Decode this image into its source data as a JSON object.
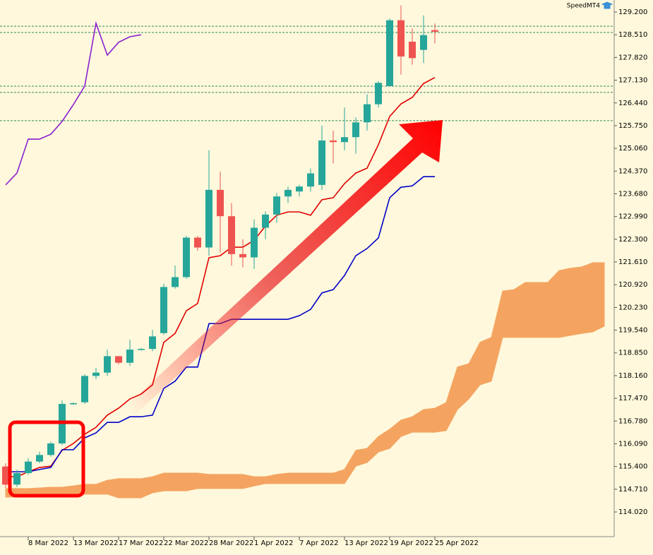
{
  "chart_data": {
    "type": "candlestick",
    "watermark": "SpeedMT4",
    "categories": [
      null,
      null,
      "8 Mar 2022",
      null,
      null,
      null,
      "13 Mar 2022",
      null,
      null,
      null,
      "17 Mar 2022",
      null,
      null,
      null,
      "22 Mar 2022",
      null,
      null,
      null,
      "28 Mar 2022",
      null,
      null,
      null,
      "1 Apr 2022",
      null,
      null,
      null,
      "7 Apr 2022",
      null,
      null,
      null,
      "13 Apr 2022",
      null,
      null,
      null,
      "19 Apr 2022",
      null,
      null,
      null,
      "25 Apr 2022",
      null,
      null,
      null,
      null,
      null,
      null,
      null,
      null,
      null,
      null,
      null,
      null,
      null,
      null,
      null
    ],
    "open": [
      115.4,
      114.85,
      115.2,
      115.55,
      115.75,
      116.1,
      117.3,
      117.35,
      118.15,
      118.25,
      118.75,
      118.55,
      118.95,
      118.97,
      119.45,
      120.85,
      121.15,
      122.35,
      122.05,
      123.8,
      123.0,
      121.85,
      121.75,
      122.65,
      123.05,
      123.6,
      123.75,
      123.9,
      123.95,
      125.3,
      125.25,
      125.4,
      125.85,
      126.4,
      126.95,
      128.95,
      128.3,
      128.05,
      128.65,
      null,
      null,
      null,
      null,
      null,
      null,
      null,
      null,
      null,
      null,
      null,
      null,
      null,
      null,
      null
    ],
    "high": [
      115.5,
      115.3,
      115.65,
      115.85,
      116.15,
      117.4,
      117.35,
      118.2,
      118.4,
      118.95,
      118.75,
      119.25,
      119.0,
      119.55,
      120.95,
      121.5,
      122.4,
      122.4,
      125.0,
      124.35,
      123.4,
      122.3,
      122.9,
      123.15,
      123.7,
      123.9,
      123.95,
      124.45,
      125.75,
      125.6,
      126.3,
      126.0,
      126.7,
      127.1,
      129.0,
      129.4,
      128.7,
      129.1,
      128.85,
      null,
      null,
      null,
      null,
      null,
      null,
      null,
      null,
      null,
      null,
      null,
      null,
      null,
      null,
      null
    ],
    "low": [
      114.75,
      114.78,
      115.15,
      115.5,
      115.7,
      116.05,
      117.28,
      117.3,
      118.05,
      118.15,
      118.5,
      118.45,
      118.92,
      118.9,
      119.4,
      120.8,
      121.1,
      121.95,
      121.8,
      121.9,
      121.5,
      121.45,
      121.4,
      122.3,
      122.8,
      123.4,
      123.6,
      123.75,
      123.8,
      124.6,
      125.0,
      124.9,
      125.6,
      126.3,
      126.95,
      127.3,
      127.6,
      127.65,
      128.25,
      null,
      null,
      null,
      null,
      null,
      null,
      null,
      null,
      null,
      null,
      null,
      null,
      null,
      null,
      null
    ],
    "close": [
      114.85,
      115.2,
      115.55,
      115.75,
      116.1,
      117.3,
      117.32,
      118.15,
      118.25,
      118.75,
      118.55,
      118.95,
      118.97,
      119.35,
      120.85,
      121.15,
      122.35,
      122.05,
      123.8,
      123.0,
      121.85,
      121.75,
      122.65,
      123.05,
      123.6,
      123.8,
      123.9,
      124.3,
      125.3,
      125.25,
      125.4,
      125.85,
      126.4,
      127.05,
      128.95,
      127.85,
      127.8,
      128.5,
      128.6,
      null,
      null,
      null,
      null,
      null,
      null,
      null,
      null,
      null,
      null,
      null,
      null,
      null,
      null,
      null
    ],
    "up_color": "#26a69a",
    "down_color": "#ef5350",
    "series": [
      {
        "color": "#e00000",
        "values": [
          115.09,
          115.09,
          115.24,
          115.37,
          115.41,
          115.89,
          116.1,
          116.38,
          116.59,
          116.96,
          117.17,
          117.45,
          117.6,
          117.88,
          119.17,
          119.44,
          120.13,
          120.35,
          121.74,
          121.8,
          122.06,
          122.06,
          122.27,
          122.7,
          123.03,
          123.13,
          123.13,
          123.03,
          123.5,
          123.56,
          123.99,
          124.31,
          124.46,
          125.17,
          126.03,
          126.41,
          126.61,
          127.03,
          127.21,
          null,
          null,
          null,
          null,
          null,
          null,
          null,
          null,
          null,
          null,
          null,
          null,
          null,
          null,
          null
        ]
      },
      {
        "color": "#0000c8",
        "values": [
          115.24,
          115.24,
          115.24,
          115.31,
          115.37,
          115.91,
          115.91,
          116.27,
          116.42,
          116.74,
          116.74,
          116.91,
          116.91,
          116.96,
          117.77,
          117.99,
          118.42,
          118.42,
          119.74,
          119.74,
          119.87,
          119.87,
          119.87,
          119.87,
          119.87,
          119.87,
          119.98,
          120.17,
          120.67,
          120.77,
          121.2,
          121.8,
          122.02,
          122.34,
          123.56,
          123.88,
          123.92,
          124.2,
          124.2,
          null,
          null,
          null,
          null,
          null,
          null,
          null,
          null,
          null,
          null,
          null,
          null,
          null,
          null,
          null
        ]
      },
      {
        "color": "#8a1fd0",
        "values": [
          123.95,
          124.31,
          125.34,
          125.34,
          125.49,
          125.88,
          126.39,
          126.95,
          128.86,
          127.89,
          128.28,
          128.45,
          128.51,
          null,
          null,
          null,
          null,
          null,
          null,
          null,
          null,
          null,
          null,
          null,
          null,
          null,
          null,
          null,
          null,
          null,
          null,
          null,
          null,
          null,
          null,
          null,
          null,
          null,
          null,
          null,
          null,
          null,
          null,
          null,
          null,
          null,
          null,
          null,
          null,
          null,
          null,
          null,
          null,
          null
        ]
      }
    ],
    "cloud": {
      "color": "#f4a460",
      "upper": [
        114.73,
        114.73,
        114.73,
        114.75,
        114.77,
        114.77,
        114.81,
        114.86,
        114.86,
        114.98,
        115.03,
        115.03,
        115.03,
        115.09,
        115.2,
        115.2,
        115.2,
        115.2,
        115.16,
        115.16,
        115.16,
        115.16,
        115.09,
        115.09,
        115.16,
        115.2,
        115.2,
        115.2,
        115.2,
        115.2,
        115.31,
        115.89,
        115.95,
        116.31,
        116.53,
        116.81,
        116.91,
        117.13,
        117.17,
        117.34,
        118.42,
        118.52,
        119.17,
        119.32,
        120.73,
        120.77,
        120.99,
        120.99,
        120.99,
        121.35,
        121.42,
        121.46,
        121.59,
        121.59
      ],
      "lower": [
        114.47,
        114.47,
        114.47,
        114.47,
        114.47,
        114.49,
        114.49,
        114.56,
        114.56,
        114.56,
        114.45,
        114.45,
        114.45,
        114.6,
        114.66,
        114.66,
        114.66,
        114.73,
        114.73,
        114.73,
        114.73,
        114.73,
        114.81,
        114.88,
        114.88,
        114.88,
        114.88,
        114.88,
        114.88,
        114.88,
        114.88,
        115.41,
        115.52,
        115.84,
        115.95,
        116.31,
        116.44,
        116.44,
        116.44,
        116.49,
        117.13,
        117.45,
        117.88,
        117.99,
        119.32,
        119.32,
        119.32,
        119.32,
        119.32,
        119.32,
        119.38,
        119.44,
        119.49,
        119.66
      ]
    },
    "hlines": {
      "color": "#2e8b57",
      "values": [
        128.77,
        128.58,
        126.95,
        126.76,
        125.9
      ]
    },
    "ylim": [
      113.27,
      129.565
    ],
    "yticks": [
      {
        "value": 129.2,
        "label": "129.200"
      },
      {
        "value": 128.51,
        "label": "128.510"
      },
      {
        "value": 127.82,
        "label": "127.820"
      },
      {
        "value": 127.13,
        "label": "127.130"
      },
      {
        "value": 126.44,
        "label": "126.440"
      },
      {
        "value": 125.75,
        "label": "125.750"
      },
      {
        "value": 125.06,
        "label": "125.060"
      },
      {
        "value": 124.37,
        "label": "124.370"
      },
      {
        "value": 123.68,
        "label": "123.680"
      },
      {
        "value": 122.99,
        "label": "122.990"
      },
      {
        "value": 122.3,
        "label": "122.300"
      },
      {
        "value": 121.61,
        "label": "121.610"
      },
      {
        "value": 120.92,
        "label": "120.920"
      },
      {
        "value": 120.23,
        "label": "120.230"
      },
      {
        "value": 119.54,
        "label": "119.540"
      },
      {
        "value": 118.85,
        "label": "118.850"
      },
      {
        "value": 118.16,
        "label": "118.160"
      },
      {
        "value": 117.47,
        "label": "117.470"
      },
      {
        "value": 116.78,
        "label": "116.780"
      },
      {
        "value": 116.09,
        "label": "116.090"
      },
      {
        "value": 115.4,
        "label": "115.400"
      },
      {
        "value": 114.71,
        "label": "114.710"
      },
      {
        "value": 114.02,
        "label": "114.020"
      }
    ]
  }
}
